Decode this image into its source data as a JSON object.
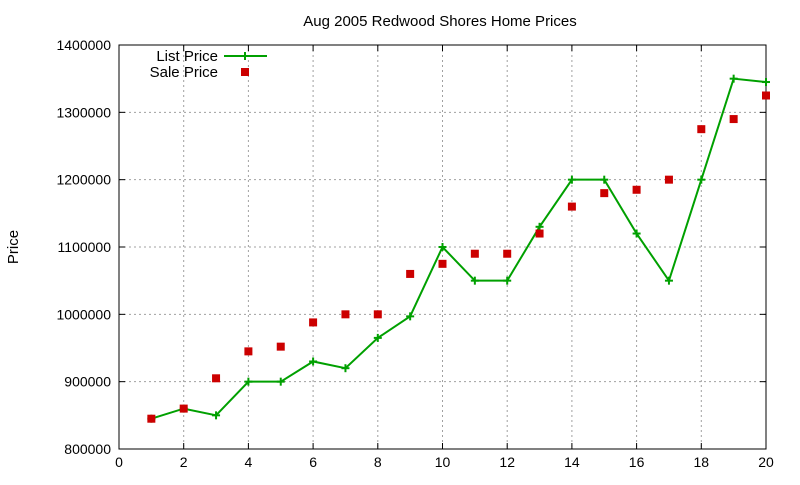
{
  "chart_data": {
    "type": "line",
    "title": "Aug 2005 Redwood Shores Home Prices",
    "xlabel": "",
    "ylabel": "Price",
    "xlim": [
      0,
      20
    ],
    "ylim": [
      800000,
      1400000
    ],
    "xticks": [
      0,
      2,
      4,
      6,
      8,
      10,
      12,
      14,
      16,
      18,
      20
    ],
    "yticks": [
      800000,
      900000,
      1000000,
      1100000,
      1200000,
      1300000,
      1400000
    ],
    "grid": true,
    "legend_position": "top-left",
    "series": [
      {
        "name": "List Price",
        "style": "line-with-plus-markers",
        "color": "#00a000",
        "x": [
          1,
          2,
          3,
          4,
          5,
          6,
          7,
          8,
          9,
          10,
          11,
          12,
          13,
          14,
          15,
          16,
          17,
          18,
          19,
          20
        ],
        "values": [
          845000,
          860000,
          850000,
          900000,
          900000,
          930000,
          920000,
          965000,
          997000,
          1100000,
          1050000,
          1050000,
          1130000,
          1200000,
          1200000,
          1120000,
          1050000,
          1200000,
          1350000,
          1345000
        ]
      },
      {
        "name": "Sale Price",
        "style": "square-markers",
        "color": "#cc0000",
        "x": [
          1,
          2,
          3,
          4,
          5,
          6,
          7,
          8,
          9,
          10,
          11,
          12,
          13,
          14,
          15,
          16,
          17,
          18,
          19,
          20
        ],
        "values": [
          845000,
          860000,
          905000,
          945000,
          952000,
          988000,
          1000000,
          1000000,
          1060000,
          1075000,
          1090000,
          1090000,
          1120000,
          1160000,
          1180000,
          1185000,
          1200000,
          1275000,
          1290000,
          1325000
        ]
      }
    ]
  }
}
